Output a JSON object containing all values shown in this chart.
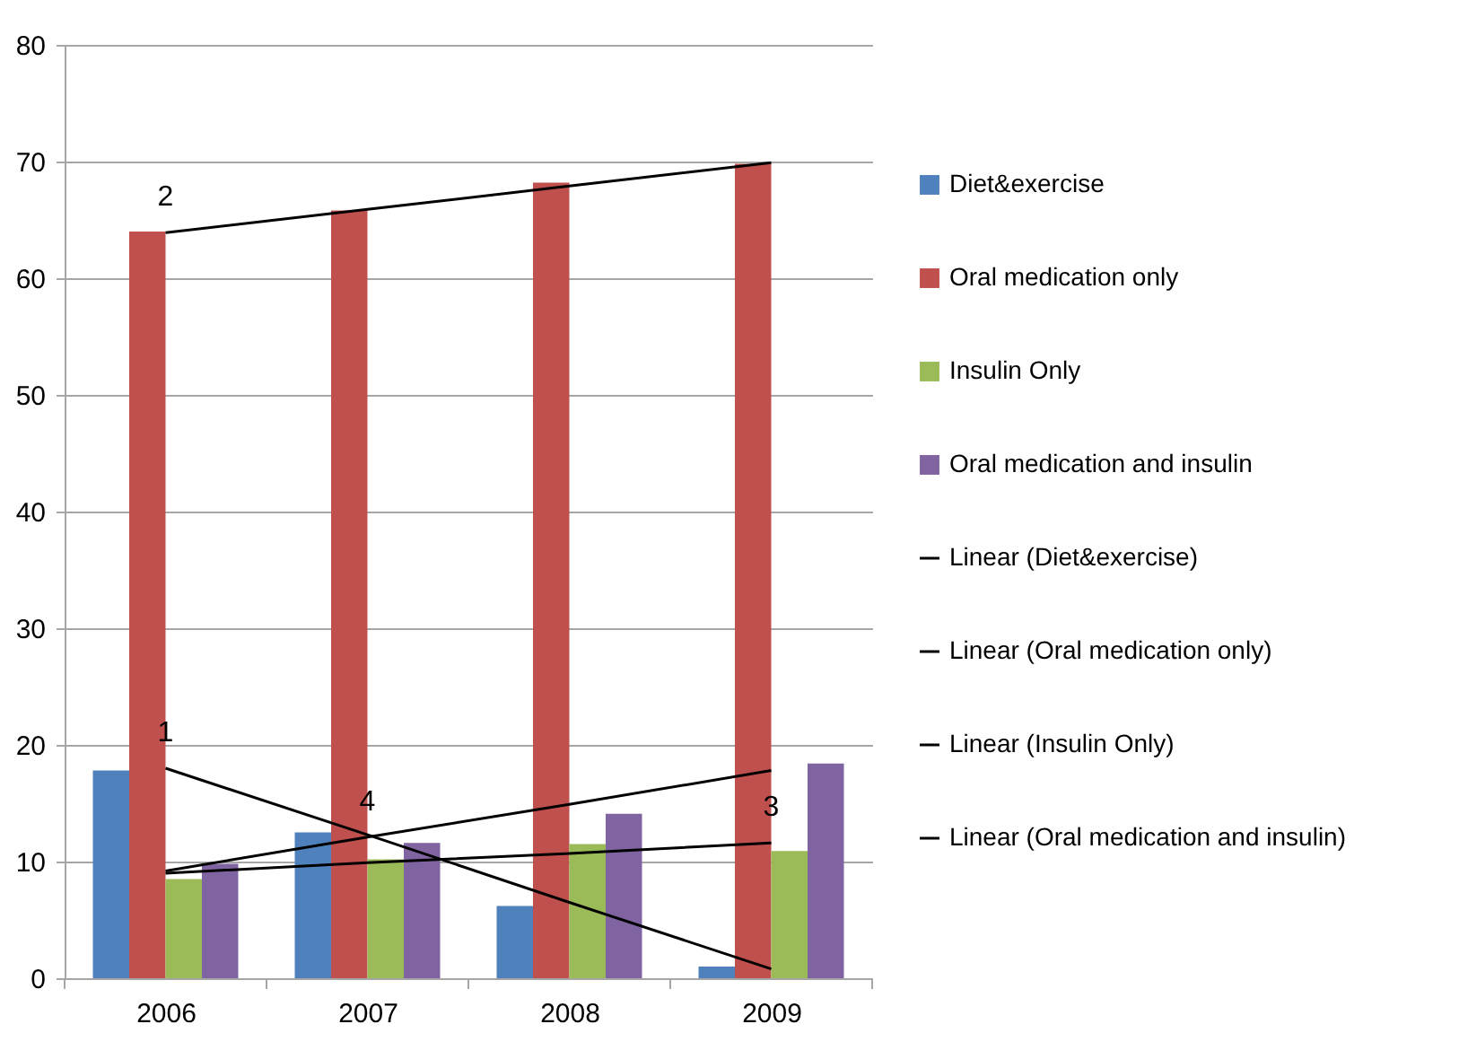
{
  "chart_data": {
    "type": "bar",
    "categories": [
      "2006",
      "2007",
      "2008",
      "2009"
    ],
    "series": [
      {
        "name": "Diet&exercise",
        "color": "#4f81bd",
        "values": [
          17.8,
          12.5,
          6.2,
          1.0
        ]
      },
      {
        "name": "Oral medication only",
        "color": "#c0504d",
        "values": [
          64.0,
          65.8,
          68.2,
          69.8
        ]
      },
      {
        "name": "Insulin Only",
        "color": "#9bbb59",
        "values": [
          8.5,
          10.2,
          11.5,
          10.9
        ]
      },
      {
        "name": "Oral medication and insulin",
        "color": "#8064a2",
        "values": [
          9.8,
          11.6,
          14.1,
          18.4
        ]
      },
      {
        "name": "Linear (Diet&exercise)",
        "type": "line",
        "color": "#000000",
        "values": [
          18.0,
          12.3,
          6.5,
          0.8
        ]
      },
      {
        "name": "Linear (Oral medication only)",
        "type": "line",
        "color": "#000000",
        "values": [
          63.9,
          65.9,
          67.9,
          69.9
        ]
      },
      {
        "name": "Linear (Insulin Only)",
        "type": "line",
        "color": "#000000",
        "values": [
          9.0,
          9.9,
          10.7,
          11.6
        ]
      },
      {
        "name": "Linear (Oral medication and insulin)",
        "type": "line",
        "color": "#000000",
        "values": [
          9.2,
          12.1,
          14.9,
          17.8
        ]
      }
    ],
    "ylim": [
      0,
      80
    ],
    "yticks": [
      0,
      10,
      20,
      30,
      40,
      50,
      60,
      70,
      80
    ],
    "grid": "y",
    "legend": "right",
    "annotations": [
      {
        "text": "1",
        "x": "2006",
        "y": 18.0
      },
      {
        "text": "2",
        "x": "2006",
        "y": 63.9
      },
      {
        "text": "4",
        "x": "2007",
        "y": 12.1
      },
      {
        "text": "3",
        "x": "2009",
        "y": 11.6
      }
    ]
  }
}
